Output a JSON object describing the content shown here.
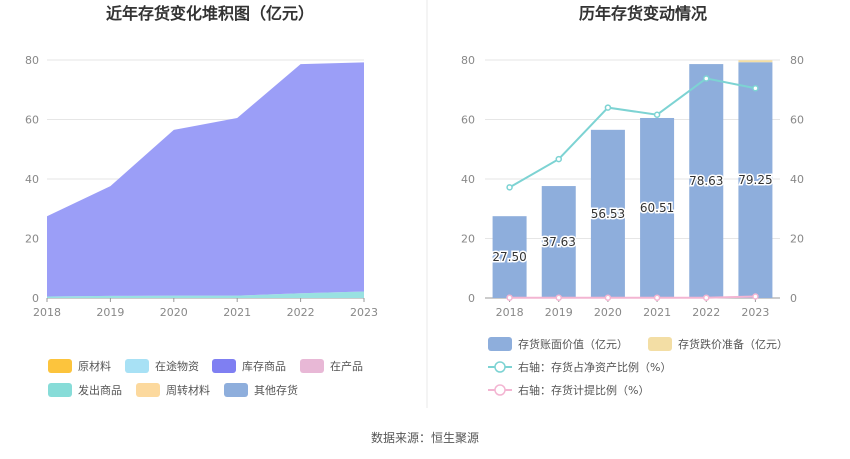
{
  "footer": "数据来源：恒生聚源",
  "colors": {
    "area_main": "#9b9ef7",
    "area_transit": "#99e1e1",
    "bar": "#8eaedc",
    "bar_top": "#f3dea5",
    "line_ratio": "#7dd3d3",
    "line_provision": "#f3b5d2",
    "grid": "#e6e6e6",
    "axis": "#999999",
    "divider": "#e8e8e8"
  },
  "chart_data": [
    {
      "type": "area",
      "title": "近年存货变化堆积图（亿元）",
      "x": [
        "2018",
        "2019",
        "2020",
        "2021",
        "2022",
        "2023"
      ],
      "ylim": [
        0,
        80
      ],
      "yticks": [
        0,
        20,
        40,
        60,
        80
      ],
      "series": [
        {
          "name": "原材料",
          "color": "#fcc43d",
          "values": [
            0,
            0,
            0,
            0,
            0,
            0
          ]
        },
        {
          "name": "在途物资",
          "color": "#a8e1f5",
          "values": [
            0,
            0,
            0,
            0,
            0,
            0
          ]
        },
        {
          "name": "库存商品",
          "color": "#7f7ff2",
          "values": [
            27.0,
            36.9,
            55.7,
            59.7,
            77.0,
            77.0
          ]
        },
        {
          "name": "在产品",
          "color": "#e8b8d6",
          "values": [
            0,
            0,
            0,
            0,
            0,
            0
          ]
        },
        {
          "name": "发出商品",
          "color": "#87dcd8",
          "values": [
            0.5,
            0.7,
            0.8,
            0.8,
            1.6,
            2.2
          ]
        },
        {
          "name": "周转材料",
          "color": "#fcd99e",
          "values": [
            0,
            0,
            0,
            0,
            0,
            0
          ]
        },
        {
          "name": "其他存货",
          "color": "#8eaedc",
          "values": [
            0,
            0,
            0,
            0,
            0,
            0
          ]
        }
      ]
    },
    {
      "type": "bar",
      "title": "历年存货变动情况",
      "categories": [
        "2018",
        "2019",
        "2020",
        "2021",
        "2022",
        "2023"
      ],
      "ylim": [
        0,
        80
      ],
      "yticks": [
        0,
        20,
        40,
        60,
        80
      ],
      "y2lim": [
        0,
        80
      ],
      "y2ticks": [
        0,
        20,
        40,
        60,
        80
      ],
      "series": [
        {
          "name": "存货账面价值（亿元）",
          "type": "bar",
          "values": [
            27.5,
            37.63,
            56.53,
            60.51,
            78.63,
            79.25
          ],
          "labels": [
            "27.50",
            "37.63",
            "56.53",
            "60.51",
            "78.63",
            "79.25"
          ]
        },
        {
          "name": "存货跌价准备（亿元）",
          "type": "bar-stack",
          "values": [
            0,
            0,
            0,
            0,
            0,
            0.4
          ]
        },
        {
          "name": "右轴：存货占净资产比例（%）",
          "type": "line",
          "axis": "right",
          "values": [
            37.2,
            46.7,
            64.0,
            61.6,
            73.8,
            70.5
          ]
        },
        {
          "name": "右轴：存货计提比例（%）",
          "type": "line",
          "axis": "right",
          "values": [
            0.1,
            0.1,
            0.1,
            0.1,
            0.1,
            0.5
          ]
        }
      ]
    }
  ]
}
